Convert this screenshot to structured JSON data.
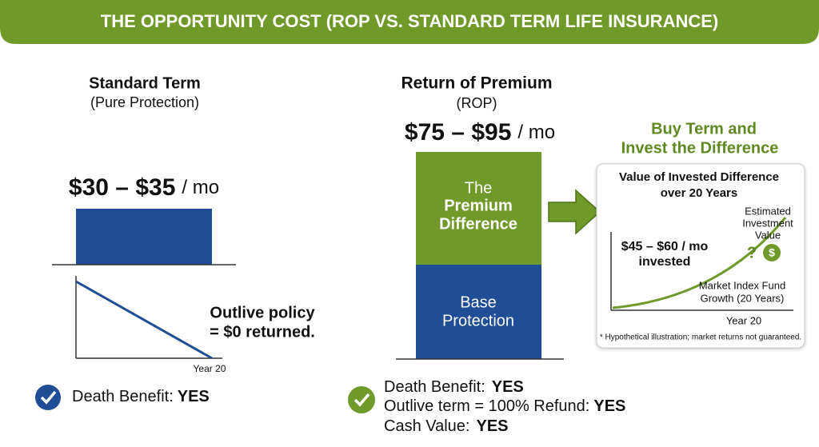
{
  "header": {
    "title": "THE OPPORTUNITY COST (ROP VS. STANDARD TERM LIFE INSURANCE)"
  },
  "standard": {
    "title": "Standard Term",
    "subtitle": "(Pure Protection)",
    "price": "$30 – $35",
    "unit": "/ mo",
    "note_lines": [
      "Outlive policy",
      "= $0 returned."
    ],
    "axis_label": "Year 20",
    "features": [
      {
        "label": "Death Benefit:",
        "value": "YES"
      }
    ]
  },
  "rop": {
    "title": "Return of Premium",
    "subtitle": "(ROP)",
    "price": "$75 – $95",
    "unit": "/ mo",
    "bar_top": [
      "The",
      "Premium",
      "Difference"
    ],
    "bar_bottom": [
      "Base",
      "Protection"
    ],
    "features": [
      {
        "label": "Death Benefit:",
        "value": "YES"
      },
      {
        "label": "Outlive term = 100% Refund:",
        "value": "YES"
      },
      {
        "label": "Cash Value:",
        "value": "YES"
      }
    ]
  },
  "invest": {
    "title_lines": [
      "Buy Term and",
      "Invest the Difference"
    ],
    "chart_title_lines": [
      "Value of Invested Difference",
      "over 20 Years"
    ],
    "estimate_lines": [
      "Estimated",
      "Investment",
      "Value"
    ],
    "question": "?",
    "dollar": "$",
    "invested_lines": [
      "$45 – $60 / mo",
      "invested"
    ],
    "growth_lines": [
      "Market Index Fund",
      "Growth (20 Years)"
    ],
    "axis_label": "Year 20",
    "footnote": "* Hypothetical illustration; market returns not guaranteed."
  }
}
